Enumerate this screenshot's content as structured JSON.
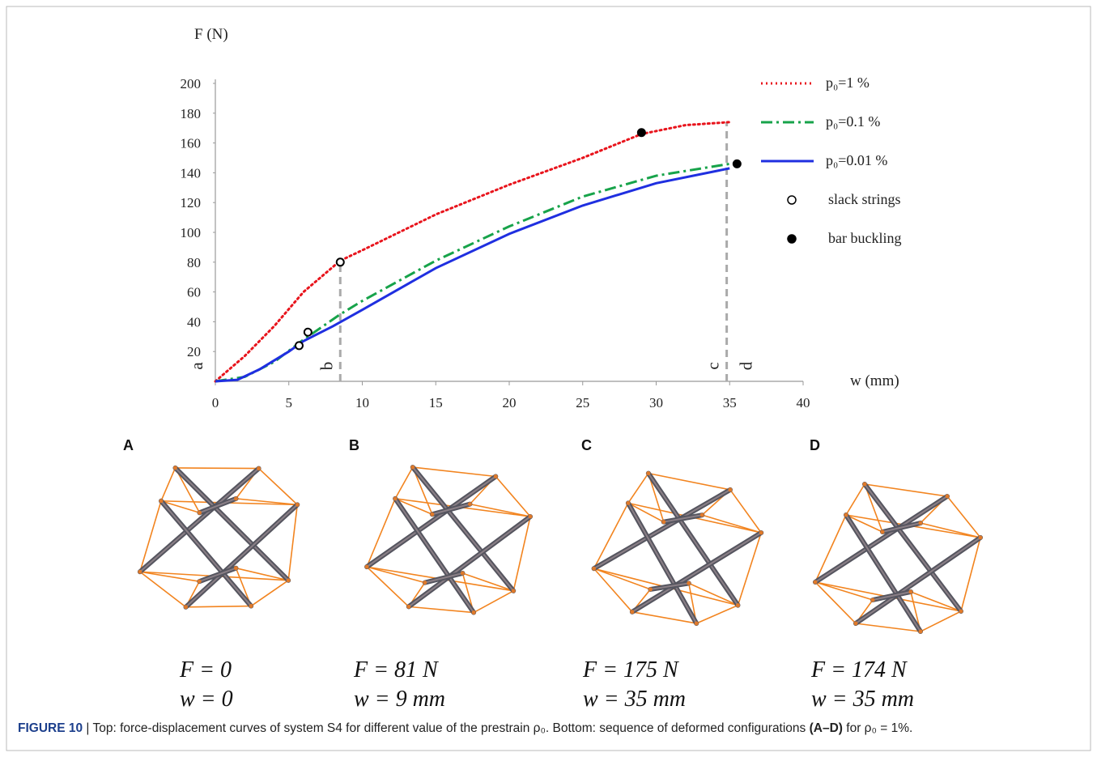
{
  "chart_data": {
    "type": "line",
    "y_label": "F (N)",
    "x_label": "w (mm)",
    "xlim": [
      0,
      40
    ],
    "xticks": [
      0,
      5,
      10,
      15,
      20,
      25,
      30,
      35,
      40
    ],
    "ylim": [
      0,
      200
    ],
    "yticks": [
      20,
      40,
      60,
      80,
      100,
      120,
      140,
      160,
      180,
      200
    ],
    "legend": "right",
    "series": [
      {
        "name": "p₀=1 %",
        "color": "#e8141c",
        "style": "dotted",
        "x": [
          0,
          2,
          4,
          6,
          8.5,
          10,
          15,
          20,
          25,
          29,
          32,
          35
        ],
        "values": [
          0,
          17,
          37,
          60,
          81,
          88,
          112,
          132,
          150,
          166,
          172,
          174
        ]
      },
      {
        "name": "p₀=0.1 %",
        "color": "#17a34a",
        "style": "dashdot",
        "x": [
          0,
          2,
          4,
          6,
          8.5,
          10,
          15,
          20,
          25,
          30,
          35
        ],
        "values": [
          0,
          3,
          13,
          28,
          45,
          54,
          81,
          104,
          124,
          138,
          146
        ]
      },
      {
        "name": "p₀=0.01 %",
        "color": "#1f2fe0",
        "style": "solid",
        "x": [
          0,
          1.5,
          3,
          5,
          6,
          8,
          10,
          15,
          20,
          25,
          30,
          35
        ],
        "values": [
          0,
          1,
          8,
          20,
          27,
          37,
          48,
          76,
          99,
          118,
          133,
          143
        ]
      },
      {
        "name": "slack strings",
        "color": "#000000",
        "style": "open",
        "x": [
          5.7,
          6.3,
          8.5
        ],
        "values": [
          24,
          33,
          80
        ]
      },
      {
        "name": "bar buckling",
        "color": "#000000",
        "style": "filled",
        "x": [
          29,
          35.5
        ],
        "values": [
          167,
          146
        ]
      }
    ],
    "markers": [
      {
        "label": "a",
        "x": 0
      },
      {
        "label": "b",
        "x": 8.5
      },
      {
        "label": "c",
        "x": 34.8
      },
      {
        "label": "d",
        "x": 35.5
      }
    ]
  },
  "panels": [
    {
      "label": "A",
      "force": "F = 0",
      "displacement": "w = 0"
    },
    {
      "label": "B",
      "force": "F = 81 N",
      "displacement": "w = 9 mm"
    },
    {
      "label": "C",
      "force": "F = 175 N",
      "displacement": "w = 35 mm"
    },
    {
      "label": "D",
      "force": "F = 174 N",
      "displacement": "w = 35 mm"
    }
  ],
  "caption": {
    "label": "FIGURE 10",
    "text_1": "| Top: force-displacement curves of system S4 for different value of the prestrain ρ₀. Bottom: sequence of deformed configurations",
    "bold": "(A–D)",
    "text_2": "for ρ₀ = 1%."
  }
}
